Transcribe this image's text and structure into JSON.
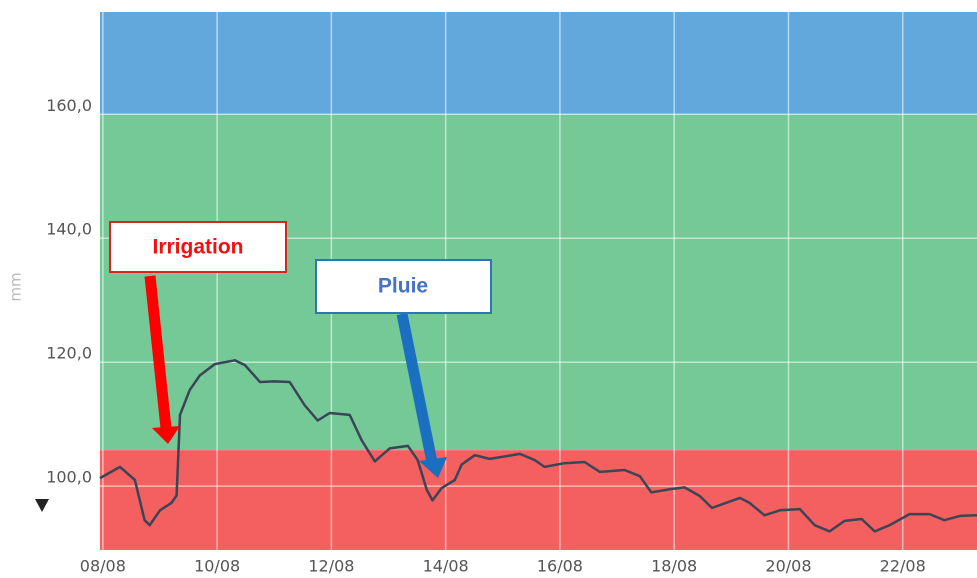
{
  "chart_data": {
    "type": "line",
    "y_label": "mm",
    "xlim": [
      -0.05,
      15.3
    ],
    "xticks": [
      {
        "value": 0,
        "label": "08/08"
      },
      {
        "value": 2,
        "label": "10/08"
      },
      {
        "value": 4,
        "label": "12/08"
      },
      {
        "value": 6,
        "label": "14/08"
      },
      {
        "value": 8,
        "label": "16/08"
      },
      {
        "value": 10,
        "label": "18/08"
      },
      {
        "value": 12,
        "label": "20/08"
      },
      {
        "value": 14,
        "label": "22/08"
      }
    ],
    "ylim": [
      89.7,
      176.5
    ],
    "yticks": [
      {
        "value": 100,
        "label": "100,0"
      },
      {
        "value": 120,
        "label": "120,0"
      },
      {
        "value": 140,
        "label": "140,0"
      },
      {
        "value": 160,
        "label": "160,0"
      }
    ],
    "grid": true,
    "bands": [
      {
        "from": 160,
        "to": 176.5,
        "color": "#62a8dc"
      },
      {
        "from": 105.8,
        "to": 160,
        "color": "#74c997"
      },
      {
        "from": 89.7,
        "to": 105.8,
        "color": "#f45f5f"
      }
    ],
    "series": [
      {
        "color": "#3a4556",
        "x": [
          -0.05,
          0.3,
          0.56,
          0.73,
          0.82,
          1.0,
          1.2,
          1.29,
          1.35,
          1.52,
          1.7,
          1.96,
          2.31,
          2.49,
          2.75,
          3.0,
          3.27,
          3.53,
          3.76,
          3.97,
          4.32,
          4.53,
          4.76,
          5.02,
          5.34,
          5.51,
          5.67,
          5.77,
          5.93,
          6.16,
          6.28,
          6.51,
          6.77,
          7.3,
          7.56,
          7.73,
          8.08,
          8.43,
          8.7,
          9.13,
          9.4,
          9.6,
          9.92,
          10.18,
          10.45,
          10.66,
          11.15,
          11.32,
          11.58,
          11.85,
          12.2,
          12.46,
          12.72,
          12.98,
          13.28,
          13.51,
          13.77,
          14.12,
          14.47,
          14.73,
          15.0,
          15.3
        ],
        "values": [
          101.3,
          103.1,
          101,
          94.5,
          93.7,
          96.1,
          97.3,
          98.5,
          111.5,
          115.5,
          117.9,
          119.7,
          120.3,
          119.5,
          116.8,
          116.9,
          116.8,
          113.1,
          110.6,
          111.8,
          111.5,
          107.4,
          104,
          106.1,
          106.5,
          104.2,
          99.4,
          97.7,
          99.7,
          101,
          103.5,
          105,
          104.4,
          105.2,
          104.2,
          103.1,
          103.7,
          103.9,
          102.3,
          102.6,
          101.6,
          99,
          99.5,
          99.8,
          98.4,
          96.5,
          98.1,
          97.3,
          95.3,
          96.1,
          96.3,
          93.7,
          92.7,
          94.4,
          94.7,
          92.7,
          93.7,
          95.5,
          95.5,
          94.5,
          95.2,
          95.3
        ]
      }
    ],
    "annotations": [
      {
        "text": "Irrigation",
        "color": "#ee1111"
      },
      {
        "text": "Pluie",
        "color": "#4472c4"
      }
    ]
  }
}
